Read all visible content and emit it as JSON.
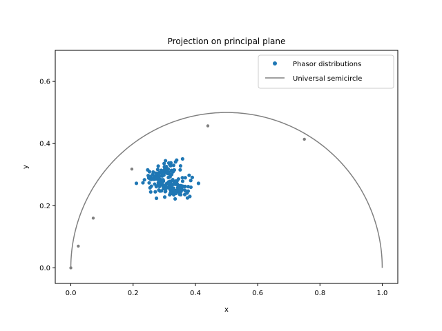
{
  "chart_data": {
    "type": "scatter",
    "title": "Projection on principal plane",
    "xlabel": "x",
    "ylabel": "y",
    "xlim": [
      -0.05,
      1.05
    ],
    "ylim": [
      -0.05,
      0.7
    ],
    "xticks": [
      "0.0",
      "0.2",
      "0.4",
      "0.6",
      "0.8",
      "1.0"
    ],
    "yticks": [
      "0.0",
      "0.2",
      "0.4",
      "0.6"
    ],
    "legend_position": "top-right",
    "grid": false,
    "series": [
      {
        "name": "Phasor distributions",
        "kind": "points",
        "color": "#1f77b4",
        "clusters": [
          {
            "center": [
              0.29,
              0.3
            ],
            "spread": [
              0.03,
              0.017
            ],
            "count": 80,
            "tilt": 0.55
          },
          {
            "center": [
              0.335,
              0.258
            ],
            "spread": [
              0.03,
              0.013
            ],
            "count": 90,
            "tilt": 0.0
          }
        ],
        "outliers": [
          [
            0.275,
            0.224
          ],
          [
            0.335,
            0.222
          ],
          [
            0.41,
            0.272
          ],
          [
            0.39,
            0.291
          ],
          [
            0.33,
            0.33
          ],
          [
            0.38,
            0.298
          ]
        ]
      },
      {
        "name": "Universal semicircle",
        "kind": "line",
        "color": "#808080",
        "markers": [
          [
            0.0,
            0.0
          ],
          [
            0.024,
            0.07
          ],
          [
            0.072,
            0.16
          ],
          [
            0.196,
            0.318
          ],
          [
            0.44,
            0.457
          ],
          [
            0.75,
            0.414
          ]
        ]
      }
    ]
  }
}
